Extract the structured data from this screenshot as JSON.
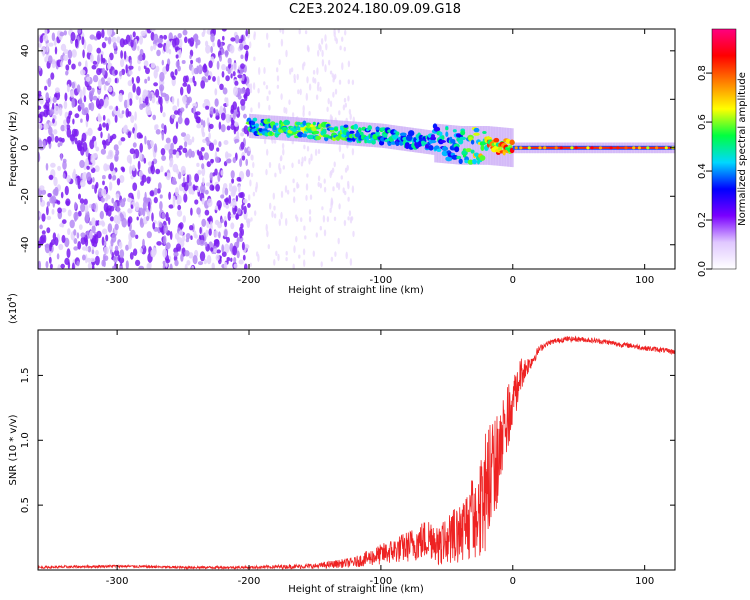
{
  "title": "C2E3.2024.180.09.09.G18",
  "chart_data": [
    {
      "type": "heatmap",
      "xlabel": "Height of straight line (km)",
      "ylabel": "Frequency (Hz)",
      "xlim": [
        -360,
        123
      ],
      "ylim": [
        -50,
        49
      ],
      "x_ticks": [
        -300,
        -200,
        -100,
        0,
        100
      ],
      "y_ticks": [
        -40,
        -20,
        0,
        20,
        40
      ],
      "colorbar": {
        "label": "Normalized spectral amplitude",
        "range": [
          0,
          0.98
        ],
        "ticks": [
          0.0,
          0.2,
          0.4,
          0.6,
          0.8
        ],
        "colormap": [
          "#ffffff",
          "#e0c8ff",
          "#7a00ff",
          "#0000ff",
          "#00d8ff",
          "#00ff40",
          "#ffff00",
          "#ff8000",
          "#ff0000",
          "#ff0080"
        ]
      },
      "signal_track": {
        "x": [
          -200,
          -150,
          -100,
          -60,
          -40,
          -20,
          0,
          50,
          100,
          123
        ],
        "frequency": [
          9,
          7,
          5,
          2,
          1,
          1,
          0,
          0,
          0,
          0
        ],
        "amplitude": [
          0.55,
          0.6,
          0.5,
          0.45,
          0.5,
          0.75,
          0.85,
          0.9,
          0.9,
          0.9
        ]
      },
      "noise_region_x": [
        -360,
        -200
      ]
    },
    {
      "type": "line",
      "xlabel": "Height of straight line (km)",
      "ylabel": "SNR (10 * v/v)",
      "y_multiplier": "(x10",
      "y_multiplier_exp": "4",
      "y_multiplier_close": ")",
      "xlim": [
        -360,
        123
      ],
      "ylim": [
        0,
        1.85
      ],
      "x_ticks": [
        -300,
        -200,
        -100,
        0,
        100
      ],
      "y_ticks": [
        0.5,
        1.0,
        1.5
      ],
      "y_tick_labels": [
        "0.5",
        "1.0",
        "1.5"
      ],
      "series": [
        {
          "color": "#ee2222",
          "x": [
            -360,
            -300,
            -250,
            -200,
            -150,
            -120,
            -100,
            -80,
            -60,
            -50,
            -40,
            -30,
            -25,
            -20,
            -15,
            -10,
            -5,
            0,
            5,
            10,
            15,
            20,
            25,
            30,
            40,
            50,
            60,
            70,
            80,
            90,
            100,
            110,
            123
          ],
          "y": [
            0.02,
            0.03,
            0.02,
            0.02,
            0.03,
            0.06,
            0.12,
            0.18,
            0.26,
            0.33,
            0.45,
            0.62,
            0.75,
            0.9,
            1.05,
            1.2,
            1.32,
            1.42,
            1.5,
            1.56,
            1.62,
            1.7,
            1.74,
            1.76,
            1.78,
            1.78,
            1.77,
            1.76,
            1.74,
            1.73,
            1.71,
            1.7,
            1.68
          ],
          "jitter": [
            0.01,
            0.01,
            0.01,
            0.01,
            0.02,
            0.04,
            0.08,
            0.12,
            0.18,
            0.22,
            0.3,
            0.42,
            0.5,
            0.6,
            0.6,
            0.45,
            0.35,
            0.25,
            0.15,
            0.08,
            0.05,
            0.03,
            0.02,
            0.02,
            0.02,
            0.02,
            0.02,
            0.02,
            0.02,
            0.02,
            0.02,
            0.02,
            0.02
          ]
        }
      ]
    }
  ]
}
